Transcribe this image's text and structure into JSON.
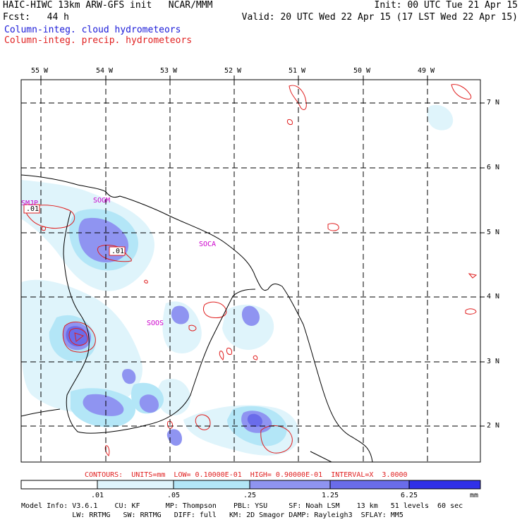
{
  "header": {
    "left1": "HAIC-HIWC 13km ARW-GFS init   NCAR/MMM",
    "left2": "Fcst:   44 h",
    "right1": "Init: 00 UTC Tue 21 Apr 15",
    "right2": "Valid: 20 UTC Wed 22 Apr 15 (17 LST Wed 22 Apr 15)",
    "field1": "Column-integ. cloud hydrometeors",
    "field2": "Column-integ. precip. hydrometeors"
  },
  "colors": {
    "field1": "#1a1ad8",
    "field2": "#e02020",
    "shade": [
      "#ffffff",
      "#dff4fb",
      "#b3e6f7",
      "#8f94f1",
      "#6a6cea",
      "#3030e8"
    ],
    "label": "#cc00cc"
  },
  "axes": {
    "lon_labels": [
      "55 W",
      "54 W",
      "53 W",
      "52 W",
      "51 W",
      "50 W",
      "49 W"
    ],
    "lat_labels": [
      "7 N",
      "6 N",
      "5 N",
      "4 N",
      "3 N",
      "2 N"
    ]
  },
  "station_labels": [
    "SMJP",
    "SOGM",
    "SOCA",
    "SOOS"
  ],
  "contour_labels": [
    ".01",
    ".01"
  ],
  "contours_line": "CONTOURS:  UNITS=mm  LOW= 0.10000E-01  HIGH= 0.90000E-01  INTERVAL=X  3.0000",
  "colorbar": {
    "ticks": [
      ".01",
      ".05",
      ".25",
      "1.25",
      "6.25"
    ],
    "units": "mm"
  },
  "footer": {
    "line1": "Model Info: V3.6.1    CU: KF      MP: Thompson    PBL: YSU     SF: Noah LSM    13 km   51 levels  60 sec",
    "line2": "            LW: RRTMG   SW: RRTMG   DIFF: full   KM: 2D Smagor DAMP: Rayleigh3  SFLAY: MM5"
  }
}
